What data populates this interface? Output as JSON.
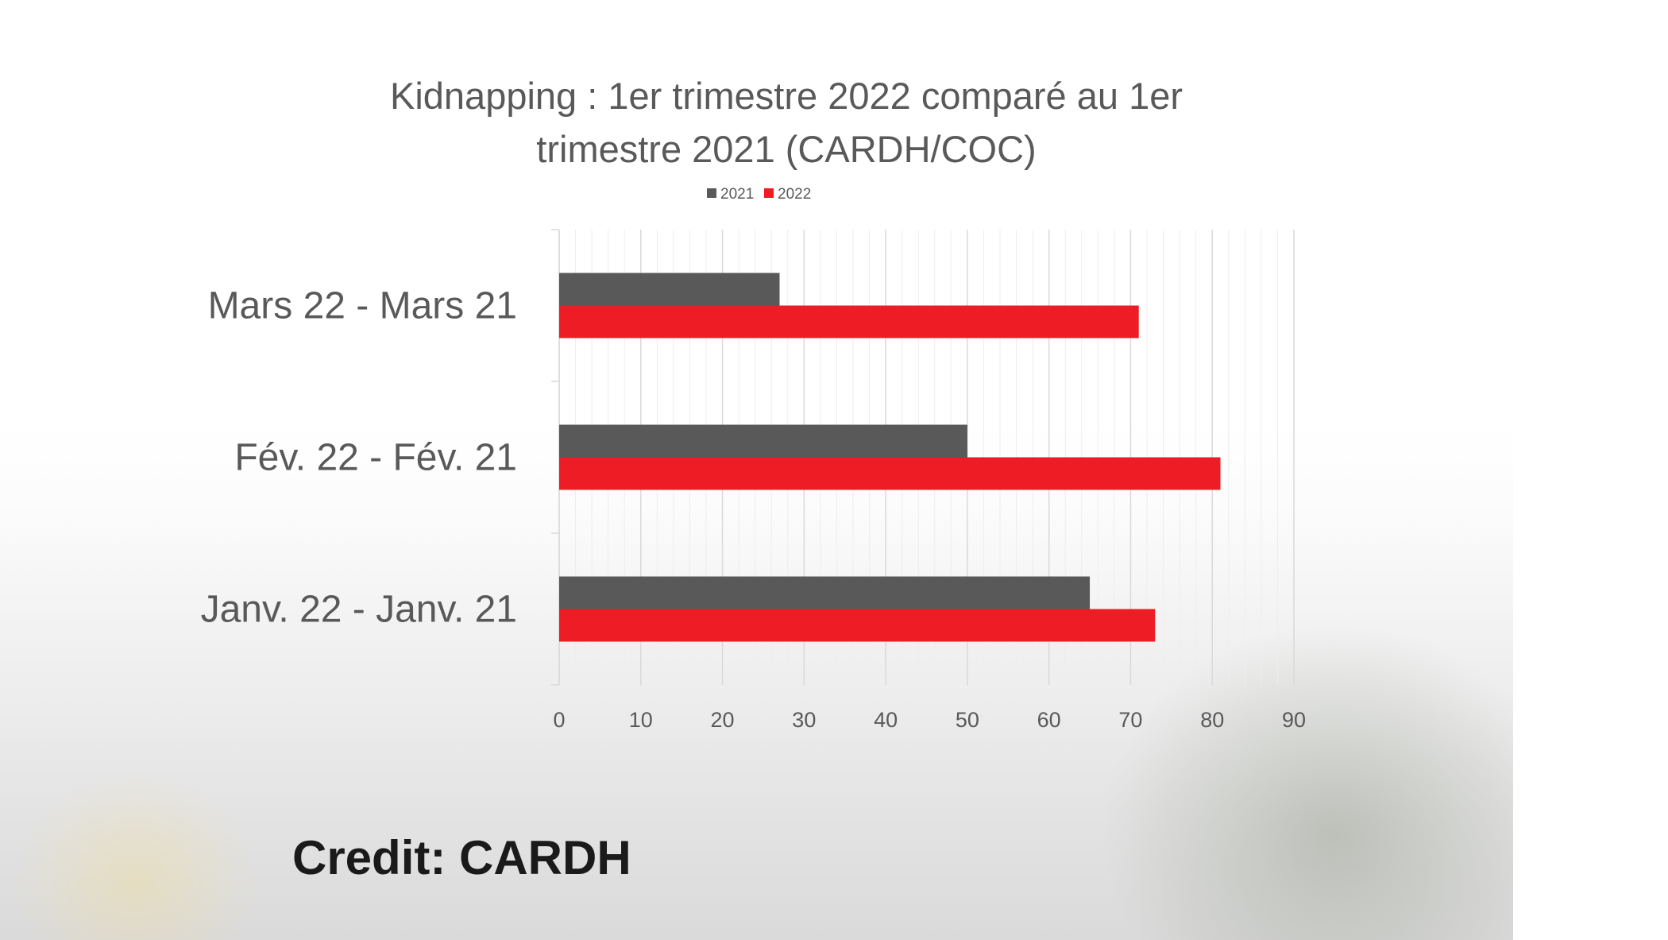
{
  "chart_data": {
    "type": "bar",
    "orientation": "horizontal",
    "title_lines": [
      "Kidnapping  :  1er   trimestre 2022 comparé au 1er",
      "trimestre 2021 (CARDH/COC)"
    ],
    "categories": [
      "Janv. 22 - Janv. 21",
      "Fév. 22 - Fév. 21",
      "Mars 22 - Mars 21"
    ],
    "series": [
      {
        "name": "2021",
        "color": "#595959",
        "values": [
          65,
          50,
          27
        ]
      },
      {
        "name": "2022",
        "color": "#ee1c25",
        "values": [
          73,
          81,
          71
        ]
      }
    ],
    "xlim": [
      0,
      90
    ],
    "xticks": [
      "0",
      "10",
      "20",
      "30",
      "40",
      "50",
      "60",
      "70",
      "80",
      "90"
    ],
    "grid": true,
    "legend": "top-center"
  },
  "credit": "Credit: CARDH"
}
